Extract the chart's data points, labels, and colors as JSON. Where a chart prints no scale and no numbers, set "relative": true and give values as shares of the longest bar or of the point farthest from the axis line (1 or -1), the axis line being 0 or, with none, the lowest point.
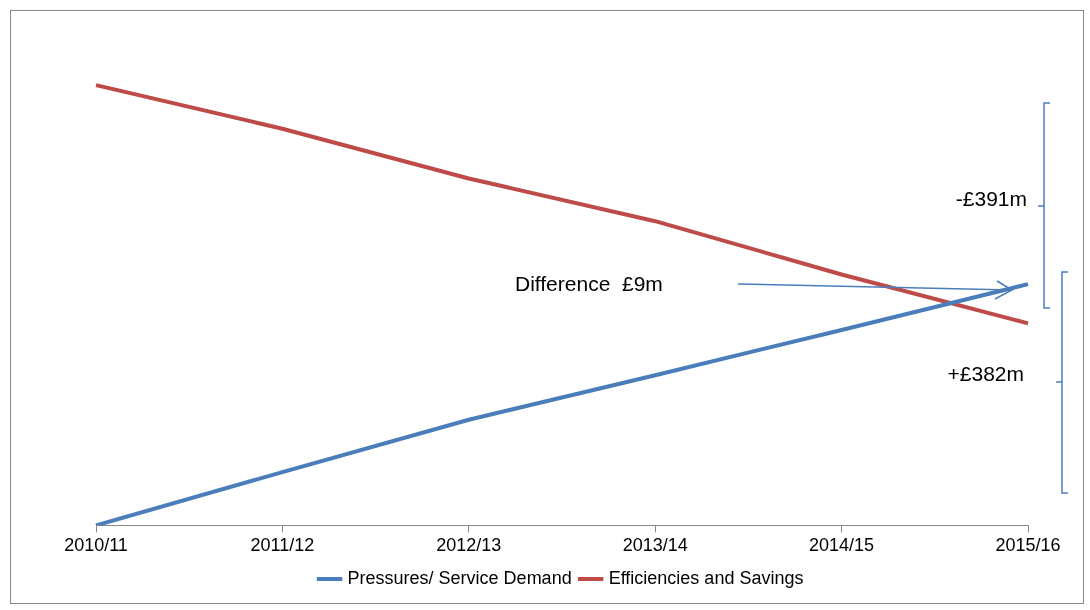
{
  "chart_data": {
    "type": "line",
    "relative": true,
    "categories": [
      "2010/11",
      "2011/12",
      "2012/13",
      "2013/14",
      "2014/15",
      "2015/16"
    ],
    "series": [
      {
        "name": "Pressures/ Service Demand",
        "color": "#4a7ebb",
        "values": [
          0,
          0.121,
          0.24,
          0.341,
          0.444,
          0.548
        ]
      },
      {
        "name": "Efficiencies and Savings",
        "color": "#be4b48",
        "values": [
          1,
          0.901,
          0.788,
          0.691,
          0.57,
          0.459
        ]
      }
    ],
    "annotations": [
      "-£391m",
      "+£382m",
      "Difference  £9m"
    ],
    "legend": "bottom",
    "grid": false,
    "marker": "none",
    "line_style": "solid"
  }
}
